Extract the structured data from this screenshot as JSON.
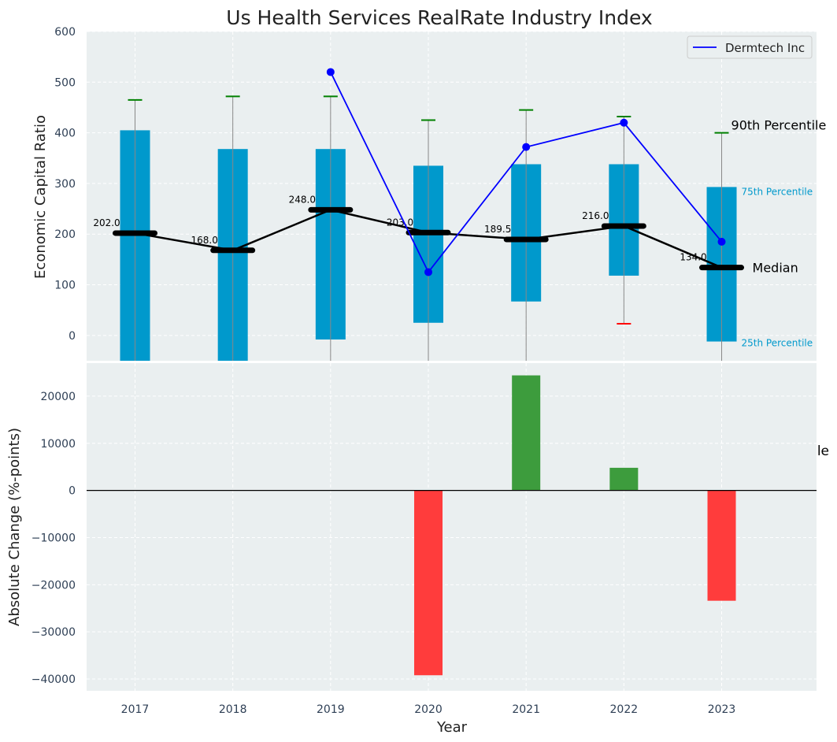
{
  "chart_data": {
    "type": "bar",
    "title": "Us Health Services RealRate Industry Index",
    "colors": {
      "background": "#eaeff0",
      "box": "#0099cc",
      "median": "#000000",
      "company_line": "#0000ff",
      "whisker_high": "#008000",
      "whisker_low": "#ff0000",
      "positive_bar": "#3d9c3d",
      "negative_bar": "#ff3c3c",
      "text": "#2e3f55"
    },
    "top_panel": {
      "ylabel": "Economic Capital Ratio",
      "ylim": [
        -50,
        600
      ],
      "yticks": [
        0,
        100,
        200,
        300,
        400,
        500,
        600
      ],
      "grid": true,
      "legend": {
        "position": "top-right",
        "entries": [
          "Dermtech Inc"
        ]
      },
      "categories": [
        "2017",
        "2018",
        "2019",
        "2020",
        "2021",
        "2022",
        "2023"
      ],
      "p25": [
        -50,
        -50,
        -8,
        25,
        67,
        118,
        -12
      ],
      "p75": [
        405,
        368,
        368,
        335,
        338,
        338,
        293
      ],
      "median": [
        202.0,
        168.0,
        248.0,
        203.0,
        189.5,
        216.0,
        134.0
      ],
      "p90": [
        465,
        472,
        472,
        425,
        445,
        432,
        400
      ],
      "p10": [
        -50,
        -50,
        -50,
        -50,
        -50,
        23,
        -50
      ],
      "median_labels": [
        "202.0",
        "168.0",
        "248.0",
        "203.0",
        "189.5",
        "216.0",
        "134.0"
      ],
      "series": [
        {
          "name": "Dermtech Inc",
          "values": [
            null,
            null,
            520,
            125,
            372,
            420,
            185
          ]
        }
      ],
      "annotations": {
        "p90": "90th Percentile",
        "p75": "75th Percentile",
        "median": "Median",
        "p25": "25th Percentile"
      }
    },
    "bottom_panel": {
      "ylabel": "Absolute Change (%-points)",
      "xlabel": "Year",
      "ylim": [
        -42500,
        27000
      ],
      "yticks": [
        -40000,
        -30000,
        -20000,
        -10000,
        0,
        10000,
        20000
      ],
      "ytick_labels": [
        "−40000",
        "−30000",
        "−20000",
        "−10000",
        "0",
        "10000",
        "20000"
      ],
      "grid": true,
      "categories": [
        "2017",
        "2018",
        "2019",
        "2020",
        "2021",
        "2022",
        "2023"
      ],
      "values": [
        null,
        null,
        null,
        -39200,
        24400,
        4800,
        -23400
      ],
      "clipped_annotation": "le"
    }
  }
}
